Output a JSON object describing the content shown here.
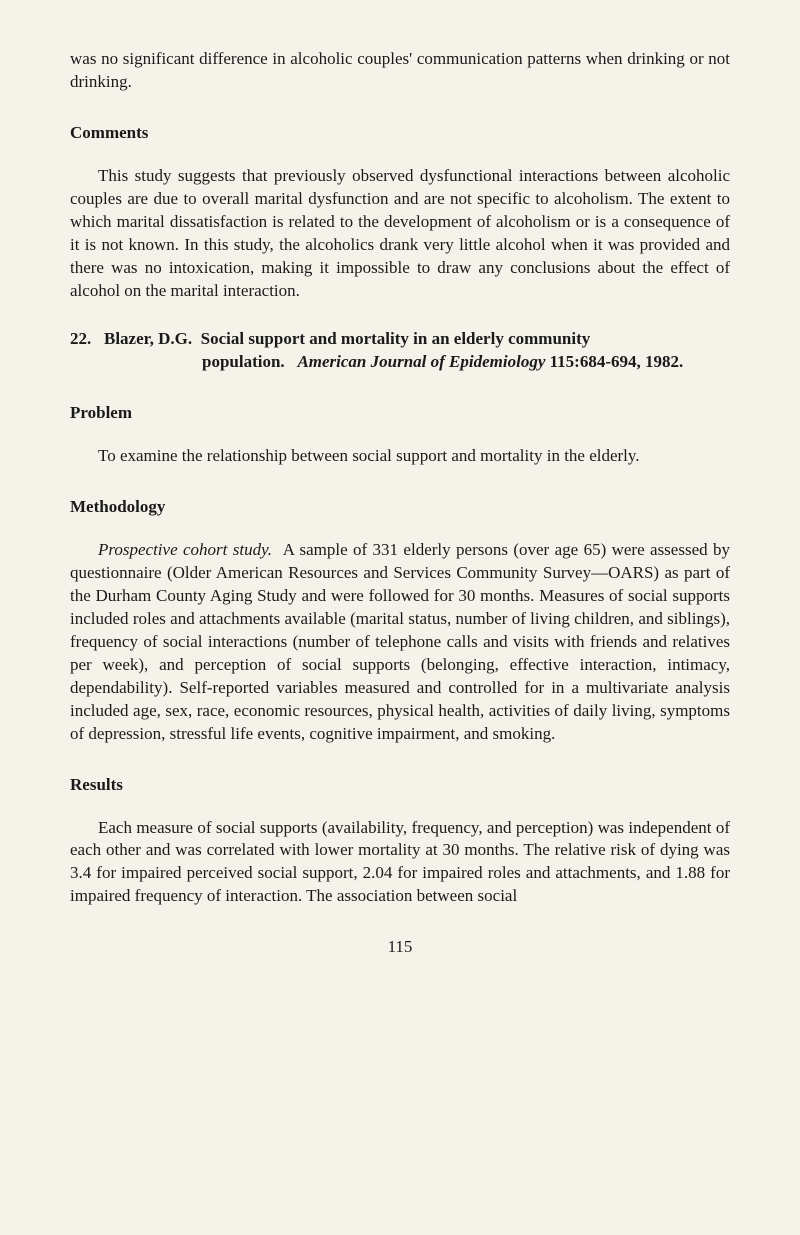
{
  "intro_paragraph": "was no significant difference in alcoholic couples' communication patterns when drinking or not drinking.",
  "comments": {
    "heading": "Comments",
    "text": "This study suggests that previously observed dysfunctional interactions between alcoholic couples are due to overall marital dysfunction and are not specific to alcoholism. The extent to which marital dissatisfaction is related to the development of alcoholism or is a consequence of it is not known. In this study, the alcoholics drank very little alcohol when it was provided and there was no intoxication, making it impossible to draw any conclusions about the effect of alcohol on the marital interaction."
  },
  "citation": {
    "number": "22.",
    "author": "Blazer, D.G.",
    "title": "Social support and mortality in an elderly community population.",
    "journal": "American Journal of Epidemiology",
    "volume_pages": "115:684-694, 1982."
  },
  "problem": {
    "heading": "Problem",
    "text": "To examine the relationship between social support and mortality in the elderly."
  },
  "methodology": {
    "heading": "Methodology",
    "study_type": "Prospective cohort study.",
    "text": "A sample of 331 elderly persons (over age 65) were assessed by questionnaire (Older American Resources and Services Community Survey—OARS) as part of the Durham County Aging Study and were followed for 30 months. Measures of social supports included roles and attachments available (marital status, number of living children, and siblings), frequency of social interactions (number of telephone calls and visits with friends and relatives per week), and perception of social supports (belonging, effective interaction, intimacy, dependability). Self-reported variables measured and controlled for in a multivariate analysis included age, sex, race, economic resources, physical health, activities of daily living, symptoms of depression, stressful life events, cognitive impairment, and smoking."
  },
  "results": {
    "heading": "Results",
    "text": "Each measure of social supports (availability, frequency, and perception) was independent of each other and was correlated with lower mortality at 30 months. The relative risk of dying was 3.4 for impaired perceived social support, 2.04 for impaired roles and attachments, and 1.88 for impaired frequency of interaction. The association between social"
  },
  "page_number": "115"
}
